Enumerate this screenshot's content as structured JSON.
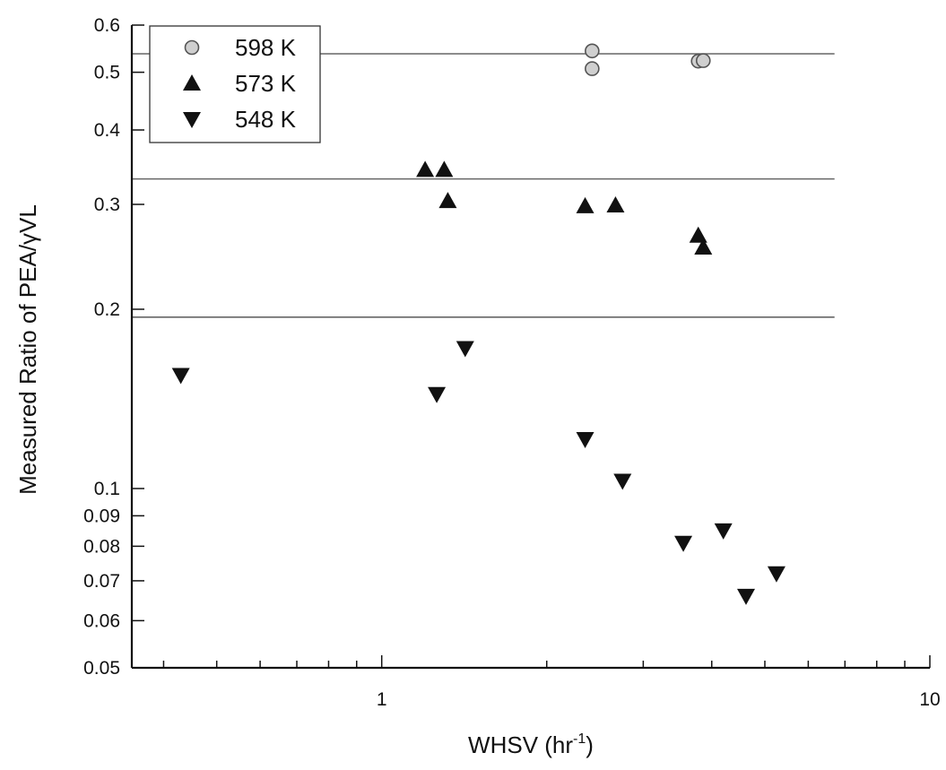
{
  "chart_data": {
    "type": "scatter",
    "xlabel": "WHSV (hr",
    "xlabel_sup": "-1",
    "xlabel_tail": ")",
    "ylabel": "Measured Ratio of PEA/γVL",
    "xscale": "log",
    "yscale": "log",
    "xlim": [
      0.35,
      10
    ],
    "ylim": [
      0.05,
      0.6
    ],
    "x_tick_labels": [
      {
        "value": 1,
        "label": "1"
      },
      {
        "value": 10,
        "label": "10"
      }
    ],
    "y_tick_labels": [
      {
        "value": 0.6,
        "label": "0.6"
      },
      {
        "value": 0.5,
        "label": "0.5"
      },
      {
        "value": 0.4,
        "label": "0.4"
      },
      {
        "value": 0.3,
        "label": "0.3"
      },
      {
        "value": 0.2,
        "label": "0.2"
      },
      {
        "value": 0.1,
        "label": "0.1"
      },
      {
        "value": 0.09,
        "label": "0.09"
      },
      {
        "value": 0.08,
        "label": "0.08"
      },
      {
        "value": 0.07,
        "label": "0.07"
      },
      {
        "value": 0.06,
        "label": "0.06"
      },
      {
        "value": 0.05,
        "label": "0.05"
      }
    ],
    "legend_position": "top-left",
    "series": [
      {
        "name": "598 K",
        "marker": "circle",
        "color": "#9a9a9a",
        "points": [
          [
            2.42,
            0.543
          ],
          [
            2.42,
            0.507
          ],
          [
            3.78,
            0.522
          ],
          [
            3.86,
            0.523
          ]
        ]
      },
      {
        "name": "573 K",
        "marker": "triangle-up",
        "color": "#111111",
        "points": [
          [
            1.2,
            0.343
          ],
          [
            1.3,
            0.343
          ],
          [
            1.32,
            0.304
          ],
          [
            2.35,
            0.298
          ],
          [
            2.67,
            0.299
          ],
          [
            3.78,
            0.266
          ],
          [
            3.86,
            0.254
          ]
        ]
      },
      {
        "name": "548 K",
        "marker": "triangle-down",
        "color": "#111111",
        "points": [
          [
            0.43,
            0.155
          ],
          [
            1.26,
            0.144
          ],
          [
            1.42,
            0.172
          ],
          [
            2.35,
            0.121
          ],
          [
            2.75,
            0.103
          ],
          [
            3.55,
            0.081
          ],
          [
            4.2,
            0.085
          ],
          [
            4.62,
            0.066
          ],
          [
            5.25,
            0.072
          ]
        ]
      }
    ],
    "reference_lines": [
      {
        "y": 0.537,
        "color": "#666666"
      },
      {
        "y": 0.331,
        "color": "#666666"
      },
      {
        "y": 0.194,
        "color": "#666666"
      }
    ]
  }
}
